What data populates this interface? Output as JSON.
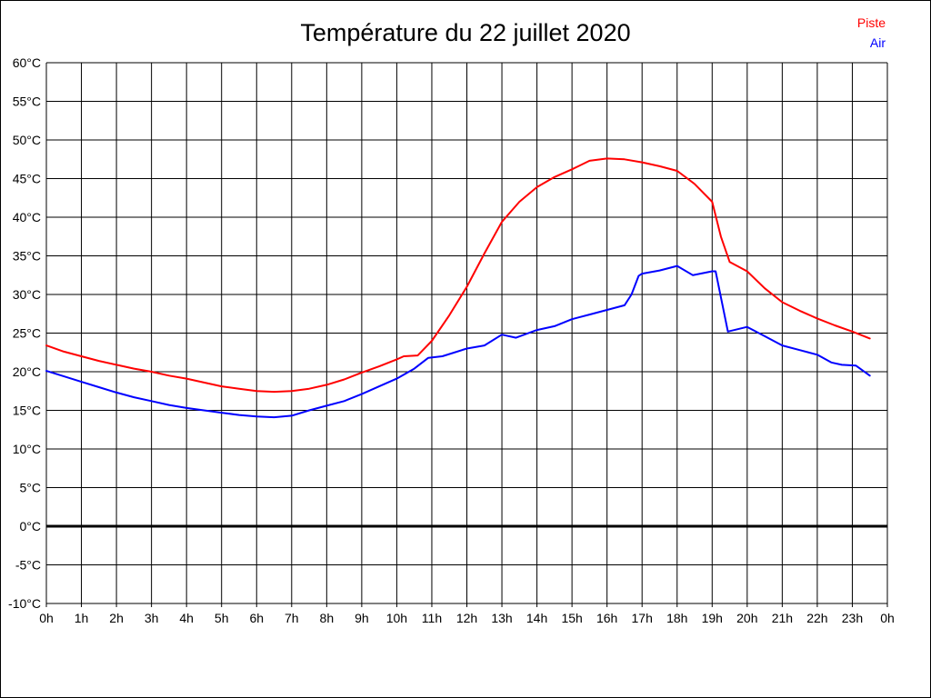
{
  "chart_data": {
    "type": "line",
    "title": "Température du 22 juillet 2020",
    "xlabel": "",
    "ylabel": "°C",
    "xlim": [
      0,
      24
    ],
    "ylim": [
      -10,
      60
    ],
    "y_tick_step": 5,
    "y_tick_suffix": "°C",
    "grid": true,
    "zero_line_bold": true,
    "legend_position": "top-right",
    "x_tick_labels": [
      "0h",
      "1h",
      "2h",
      "3h",
      "4h",
      "5h",
      "6h",
      "7h",
      "8h",
      "9h",
      "10h",
      "11h",
      "12h",
      "13h",
      "14h",
      "15h",
      "16h",
      "17h",
      "18h",
      "19h",
      "20h",
      "21h",
      "22h",
      "23h",
      "0h"
    ],
    "series": [
      {
        "name": "Piste",
        "color": "#ff0000",
        "points": [
          [
            0,
            23.4
          ],
          [
            0.5,
            22.6
          ],
          [
            1,
            22
          ],
          [
            1.5,
            21.4
          ],
          [
            2,
            20.9
          ],
          [
            2.5,
            20.4
          ],
          [
            3,
            20
          ],
          [
            3.5,
            19.5
          ],
          [
            4,
            19.1
          ],
          [
            4.5,
            18.6
          ],
          [
            5,
            18.1
          ],
          [
            5.5,
            17.8
          ],
          [
            6,
            17.5
          ],
          [
            6.5,
            17.4
          ],
          [
            7,
            17.5
          ],
          [
            7.5,
            17.8
          ],
          [
            8,
            18.3
          ],
          [
            8.5,
            19
          ],
          [
            9,
            19.9
          ],
          [
            9.5,
            20.7
          ],
          [
            10,
            21.6
          ],
          [
            10.2,
            22
          ],
          [
            10.6,
            22.1
          ],
          [
            11,
            24
          ],
          [
            11.5,
            27.3
          ],
          [
            12,
            31
          ],
          [
            12.5,
            35.3
          ],
          [
            13,
            39.4
          ],
          [
            13.5,
            42
          ],
          [
            14,
            43.9
          ],
          [
            14.5,
            45.2
          ],
          [
            15,
            46.2
          ],
          [
            15.5,
            47.3
          ],
          [
            16,
            47.6
          ],
          [
            16.5,
            47.5
          ],
          [
            17,
            47.1
          ],
          [
            17.5,
            46.6
          ],
          [
            18,
            46
          ],
          [
            18.5,
            44.3
          ],
          [
            19,
            42
          ],
          [
            19.25,
            37.5
          ],
          [
            19.5,
            34.2
          ],
          [
            20,
            33
          ],
          [
            20.5,
            30.8
          ],
          [
            21,
            29
          ],
          [
            21.5,
            27.9
          ],
          [
            22,
            26.9
          ],
          [
            22.5,
            26
          ],
          [
            23,
            25.2
          ],
          [
            23.5,
            24.3
          ]
        ]
      },
      {
        "name": "Air",
        "color": "#0000ff",
        "points": [
          [
            0,
            20.1
          ],
          [
            0.5,
            19.4
          ],
          [
            1,
            18.7
          ],
          [
            1.5,
            18
          ],
          [
            2,
            17.3
          ],
          [
            2.5,
            16.7
          ],
          [
            3,
            16.2
          ],
          [
            3.5,
            15.7
          ],
          [
            4,
            15.3
          ],
          [
            4.5,
            15
          ],
          [
            5,
            14.7
          ],
          [
            5.5,
            14.4
          ],
          [
            6,
            14.2
          ],
          [
            6.5,
            14.1
          ],
          [
            7,
            14.3
          ],
          [
            7.5,
            15
          ],
          [
            8,
            15.6
          ],
          [
            8.5,
            16.2
          ],
          [
            9,
            17.1
          ],
          [
            9.5,
            18.1
          ],
          [
            10,
            19.1
          ],
          [
            10.5,
            20.4
          ],
          [
            10.9,
            21.8
          ],
          [
            11.3,
            22
          ],
          [
            12,
            23
          ],
          [
            12.5,
            23.4
          ],
          [
            13,
            24.8
          ],
          [
            13.4,
            24.4
          ],
          [
            14,
            25.4
          ],
          [
            14.5,
            25.9
          ],
          [
            15,
            26.8
          ],
          [
            15.5,
            27.4
          ],
          [
            16,
            28
          ],
          [
            16.5,
            28.6
          ],
          [
            16.7,
            30
          ],
          [
            16.9,
            32.4
          ],
          [
            17,
            32.7
          ],
          [
            17.5,
            33.1
          ],
          [
            18,
            33.7
          ],
          [
            18.45,
            32.5
          ],
          [
            19,
            33
          ],
          [
            19.1,
            33
          ],
          [
            19.45,
            25.2
          ],
          [
            20,
            25.8
          ],
          [
            20.5,
            24.6
          ],
          [
            21,
            23.4
          ],
          [
            21.5,
            22.8
          ],
          [
            22,
            22.2
          ],
          [
            22.4,
            21.2
          ],
          [
            22.7,
            20.9
          ],
          [
            23.1,
            20.8
          ],
          [
            23.5,
            19.5
          ]
        ]
      }
    ]
  }
}
